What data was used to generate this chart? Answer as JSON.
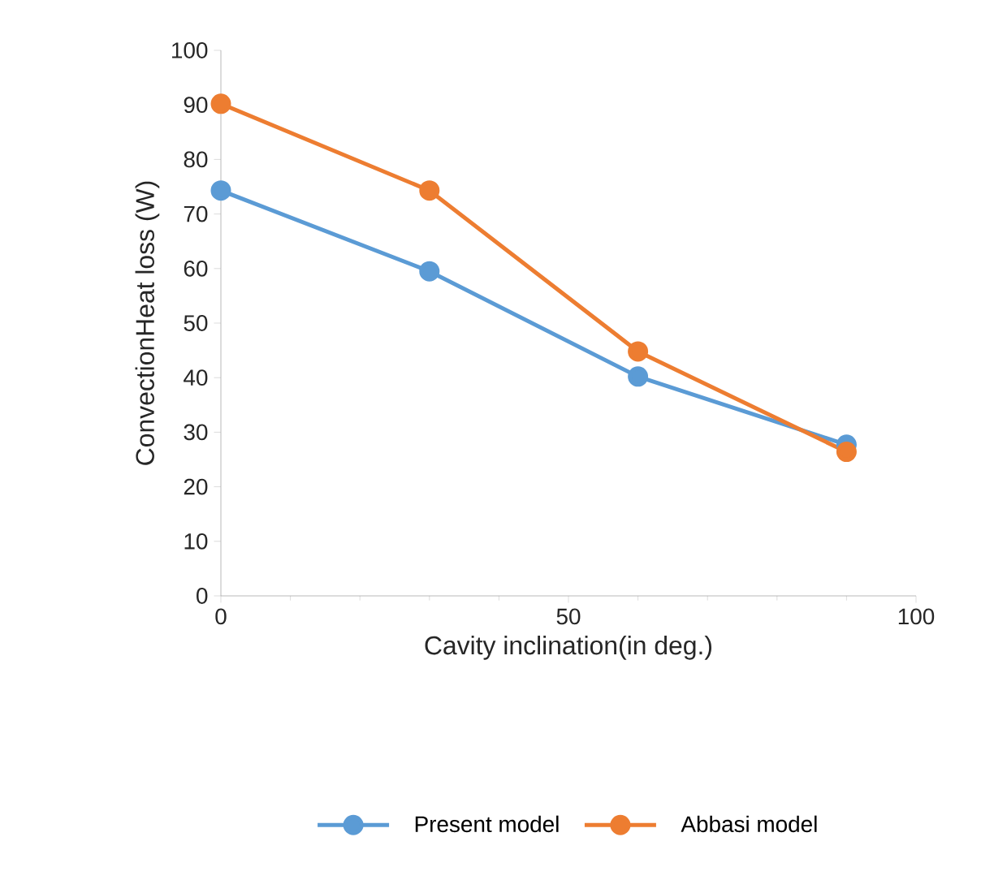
{
  "chart_data": {
    "type": "line",
    "xlabel": "Cavity inclination(in deg.)",
    "ylabel": "ConvectionHeat loss (W)",
    "x": [
      0,
      30,
      60,
      90
    ],
    "series": [
      {
        "name": "Present model",
        "color": "#5b9bd5",
        "values": [
          74.3,
          59.5,
          40.2,
          27.7
        ]
      },
      {
        "name": "Abbasi model",
        "color": "#ed7d31",
        "values": [
          90.2,
          74.3,
          44.8,
          26.4
        ]
      }
    ],
    "xlim": [
      0,
      100
    ],
    "xticks": [
      0,
      50,
      100
    ],
    "ylim": [
      0,
      100
    ],
    "yticks": [
      0,
      10,
      20,
      30,
      40,
      50,
      60,
      70,
      80,
      90,
      100
    ],
    "legend": "bottom",
    "marker": "circle",
    "line_style": "solid",
    "grid": false
  }
}
